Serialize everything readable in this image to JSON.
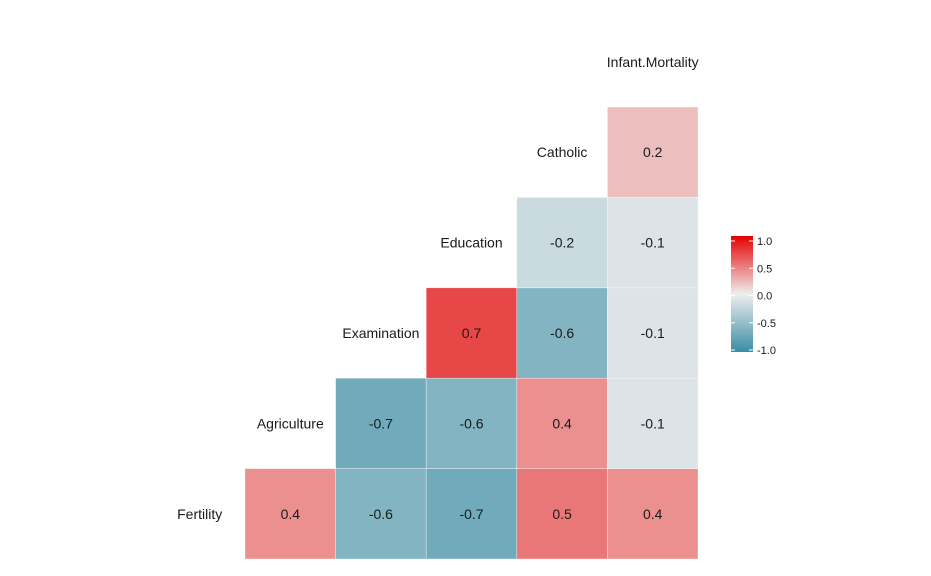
{
  "chart_data": {
    "type": "heatmap",
    "title": "",
    "variables": [
      "Fertility",
      "Agriculture",
      "Examination",
      "Education",
      "Catholic",
      "Infant.Mortality"
    ],
    "cells": [
      {
        "row": "Fertility",
        "col": "Agriculture",
        "value": 0.4
      },
      {
        "row": "Fertility",
        "col": "Examination",
        "value": -0.6
      },
      {
        "row": "Fertility",
        "col": "Education",
        "value": -0.7
      },
      {
        "row": "Fertility",
        "col": "Catholic",
        "value": 0.5
      },
      {
        "row": "Fertility",
        "col": "Infant.Mortality",
        "value": 0.4
      },
      {
        "row": "Agriculture",
        "col": "Examination",
        "value": -0.7
      },
      {
        "row": "Agriculture",
        "col": "Education",
        "value": -0.6
      },
      {
        "row": "Agriculture",
        "col": "Catholic",
        "value": 0.4
      },
      {
        "row": "Agriculture",
        "col": "Infant.Mortality",
        "value": -0.1
      },
      {
        "row": "Examination",
        "col": "Education",
        "value": 0.7
      },
      {
        "row": "Examination",
        "col": "Catholic",
        "value": -0.6
      },
      {
        "row": "Examination",
        "col": "Infant.Mortality",
        "value": -0.1
      },
      {
        "row": "Education",
        "col": "Catholic",
        "value": -0.2
      },
      {
        "row": "Education",
        "col": "Infant.Mortality",
        "value": -0.1
      },
      {
        "row": "Catholic",
        "col": "Infant.Mortality",
        "value": 0.2
      }
    ],
    "color_scale": {
      "low": "#3A8DA5",
      "mid": "#EEEEEE",
      "high": "#E60000",
      "range": [
        -1.0,
        1.0
      ]
    },
    "legend": {
      "position": "right",
      "ticks": [
        "1.0",
        "0.5",
        "0.0",
        "-0.5",
        "-1.0"
      ]
    },
    "grid": false
  }
}
